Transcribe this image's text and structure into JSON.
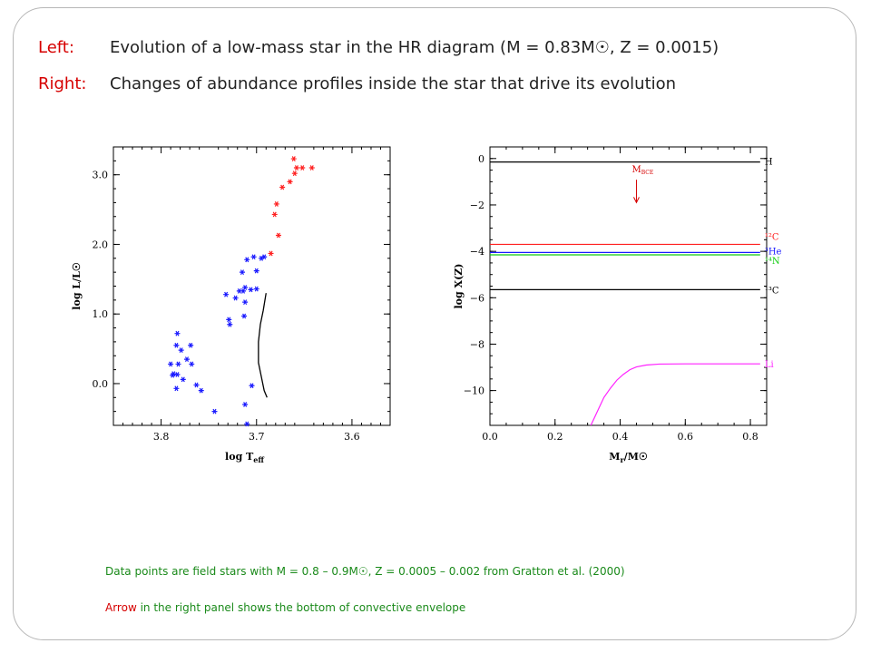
{
  "header": {
    "line1_label": "Left:",
    "line1_text": "Evolution of a low-mass star in the HR diagram  (M = 0.83M☉,  Z = 0.0015)",
    "line2_label": "Right:",
    "line2_text": "Changes of abundance profiles inside the star that drive its evolution"
  },
  "footnotes": {
    "line1": "Data points are field stars with M = 0.8 – 0.9M☉, Z = 0.0005 – 0.002  from Gratton et al. (2000)",
    "line2_emph": "Arrow",
    "line2_rest": " in the right panel shows the bottom of convective envelope"
  },
  "chart_data": [
    {
      "type": "scatter",
      "title": "",
      "xlabel": "log T",
      "xlabel_sub": "eff",
      "ylabel": "log L/L☉",
      "xlim": [
        3.85,
        3.56
      ],
      "ylim": [
        -0.6,
        3.4
      ],
      "x_ticks": [
        3.8,
        3.7,
        3.6
      ],
      "x_tick_labels": [
        "3.8",
        "3.7",
        "3.6"
      ],
      "y_ticks": [
        0.0,
        1.0,
        2.0,
        3.0
      ],
      "y_tick_labels": [
        "0.0",
        "1.0",
        "2.0",
        "3.0"
      ],
      "series": [
        {
          "color": "#1a1aff",
          "marker": "star",
          "points": [
            [
              3.783,
              0.72
            ],
            [
              3.784,
              0.55
            ],
            [
              3.769,
              0.55
            ],
            [
              3.779,
              0.48
            ],
            [
              3.79,
              0.28
            ],
            [
              3.782,
              0.28
            ],
            [
              3.773,
              0.35
            ],
            [
              3.768,
              0.28
            ],
            [
              3.787,
              0.14
            ],
            [
              3.783,
              0.13
            ],
            [
              3.788,
              0.12
            ],
            [
              3.784,
              -0.07
            ],
            [
              3.763,
              -0.02
            ],
            [
              3.777,
              0.06
            ],
            [
              3.744,
              -0.4
            ],
            [
              3.758,
              -0.1
            ],
            [
              3.728,
              0.85
            ],
            [
              3.729,
              0.92
            ],
            [
              3.722,
              1.23
            ],
            [
              3.732,
              1.28
            ],
            [
              3.712,
              1.38
            ],
            [
              3.718,
              1.33
            ],
            [
              3.714,
              1.33
            ],
            [
              3.7,
              1.36
            ],
            [
              3.706,
              1.35
            ],
            [
              3.712,
              1.17
            ],
            [
              3.713,
              0.97
            ],
            [
              3.715,
              1.6
            ],
            [
              3.7,
              1.62
            ],
            [
              3.695,
              1.8
            ],
            [
              3.692,
              1.82
            ],
            [
              3.703,
              1.82
            ],
            [
              3.71,
              1.78
            ],
            [
              3.712,
              -0.3
            ],
            [
              3.705,
              -0.03
            ],
            [
              3.71,
              -0.58
            ]
          ]
        },
        {
          "color": "#ff2020",
          "marker": "star",
          "points": [
            [
              3.661,
              3.23
            ],
            [
              3.658,
              3.1
            ],
            [
              3.652,
              3.1
            ],
            [
              3.642,
              3.1
            ],
            [
              3.66,
              3.02
            ],
            [
              3.665,
              2.9
            ],
            [
              3.673,
              2.82
            ],
            [
              3.679,
              2.58
            ],
            [
              3.681,
              2.43
            ],
            [
              3.677,
              2.13
            ],
            [
              3.685,
              1.87
            ]
          ]
        },
        {
          "name": "track",
          "type": "line",
          "color": "#000000",
          "points": [
            [
              3.689,
              -0.2
            ],
            [
              3.692,
              -0.1
            ],
            [
              3.695,
              0.1
            ],
            [
              3.698,
              0.3
            ],
            [
              3.698,
              0.6
            ],
            [
              3.696,
              0.85
            ],
            [
              3.693,
              1.05
            ],
            [
              3.69,
              1.3
            ]
          ]
        }
      ]
    },
    {
      "type": "line",
      "title": "",
      "xlabel": "M",
      "xlabel_sub": "r",
      "xlabel_tail": "/M☉",
      "ylabel": "log X(Z)",
      "xlim": [
        0.0,
        0.85
      ],
      "ylim": [
        -11.5,
        0.5
      ],
      "x_ticks": [
        0.0,
        0.2,
        0.4,
        0.6,
        0.8
      ],
      "x_tick_labels": [
        "0.0",
        "0.2",
        "0.4",
        "0.6",
        "0.8"
      ],
      "y_ticks": [
        0,
        -2,
        -4,
        -6,
        -8,
        -10
      ],
      "y_tick_labels": [
        "0",
        "−2",
        "−4",
        "−6",
        "−8",
        "−10"
      ],
      "series": [
        {
          "name": "H",
          "color": "#000000",
          "x": [
            0.0,
            0.83
          ],
          "y": [
            -0.15,
            -0.15
          ]
        },
        {
          "name": "¹²C",
          "color": "#ff2020",
          "x": [
            0.0,
            0.83
          ],
          "y": [
            -3.7,
            -3.7
          ]
        },
        {
          "name": "³He",
          "color": "#1a1aff",
          "x": [
            0.0,
            0.83
          ],
          "y": [
            -4.05,
            -4.05
          ]
        },
        {
          "name": "¹⁴N",
          "color": "#11cc11",
          "x": [
            0.0,
            0.83
          ],
          "y": [
            -4.15,
            -4.15
          ]
        },
        {
          "name": "¹³C",
          "color": "#000000",
          "x": [
            0.0,
            0.83
          ],
          "y": [
            -5.65,
            -5.65
          ]
        },
        {
          "name": "Li",
          "color": "#ff22ff",
          "x": [
            0.31,
            0.33,
            0.35,
            0.37,
            0.39,
            0.41,
            0.43,
            0.45,
            0.48,
            0.52,
            0.6,
            0.7,
            0.83
          ],
          "y": [
            -11.5,
            -10.9,
            -10.3,
            -9.9,
            -9.55,
            -9.3,
            -9.1,
            -8.98,
            -8.9,
            -8.86,
            -8.85,
            -8.85,
            -8.85
          ]
        }
      ],
      "annotations": [
        {
          "text": "M",
          "sub": "BCE",
          "x": 0.45,
          "y": -0.6,
          "arrow_to_y": -1.9,
          "color": "#d60000"
        }
      ]
    }
  ]
}
